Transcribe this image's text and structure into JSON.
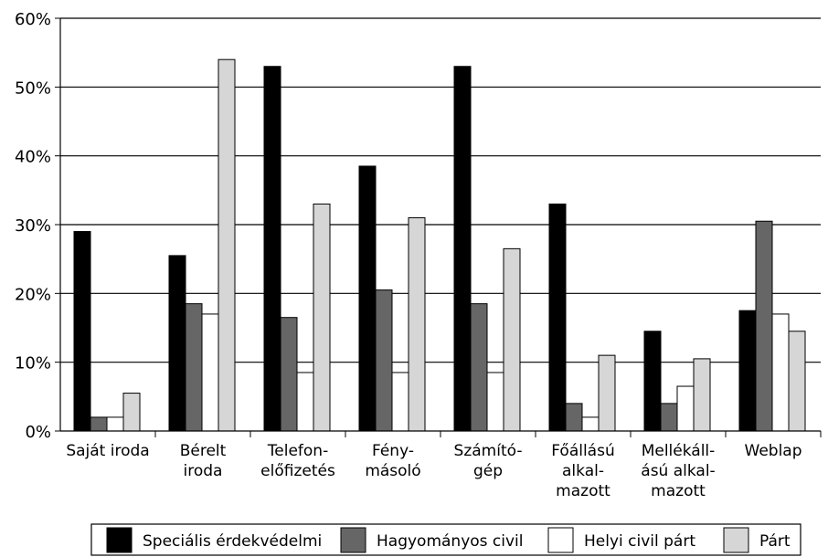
{
  "chart_data": {
    "type": "bar",
    "categories": [
      [
        "Saját iroda"
      ],
      [
        "Bérelt",
        "iroda"
      ],
      [
        "Telefon-",
        "előfizetés"
      ],
      [
        "Fény-",
        "másoló"
      ],
      [
        "Számító-",
        "gép"
      ],
      [
        "Főállású",
        "alkal-",
        "mazott"
      ],
      [
        "Mellékáll-",
        "ású alkal-",
        "mazott"
      ],
      [
        "Weblap"
      ]
    ],
    "series": [
      {
        "name": "Speciális érdekvédelmi",
        "color": "#000000",
        "values": [
          29,
          25.5,
          53,
          38.5,
          53,
          33,
          14.5,
          17.5
        ]
      },
      {
        "name": "Hagyományos civil",
        "color": "#666666",
        "values": [
          2,
          18.5,
          16.5,
          20.5,
          18.5,
          4,
          4,
          30.5
        ]
      },
      {
        "name": "Helyi civil párt",
        "color": "#ffffff",
        "values": [
          2,
          17,
          8.5,
          8.5,
          8.5,
          2,
          6.5,
          17
        ]
      },
      {
        "name": "Párt",
        "color": "#d6d6d6",
        "values": [
          5.5,
          54,
          33,
          31,
          26.5,
          11,
          10.5,
          14.5
        ]
      }
    ],
    "yticks": [
      "0%",
      "10%",
      "20%",
      "30%",
      "40%",
      "50%",
      "60%"
    ],
    "ylim": [
      0,
      60
    ],
    "grid": true,
    "legend_position": "bottom"
  }
}
